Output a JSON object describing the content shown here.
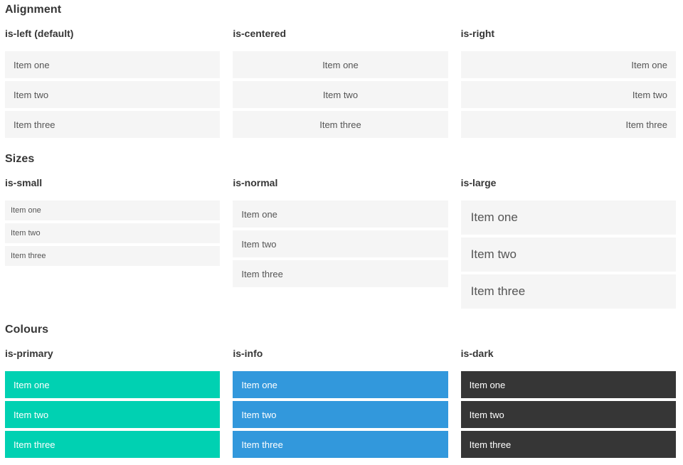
{
  "colors": {
    "item_bg": "#f5f5f5",
    "item_text": "#555555",
    "heading_text": "#363636",
    "primary": "#00d1b2",
    "info": "#3298dc",
    "dark": "#363636",
    "page_bg": "#ffffff",
    "colored_item_text": "#ffffff"
  },
  "sections": [
    {
      "title": "Alignment",
      "columns": [
        {
          "heading": "is-left (default)",
          "items": [
            "Item one",
            "Item two",
            "Item three"
          ]
        },
        {
          "heading": "is-centered",
          "items": [
            "Item one",
            "Item two",
            "Item three"
          ]
        },
        {
          "heading": "is-right",
          "items": [
            "Item one",
            "Item two",
            "Item three"
          ]
        }
      ]
    },
    {
      "title": "Sizes",
      "columns": [
        {
          "heading": "is-small",
          "items": [
            "Item one",
            "Item two",
            "Item three"
          ]
        },
        {
          "heading": "is-normal",
          "items": [
            "Item one",
            "Item two",
            "Item three"
          ]
        },
        {
          "heading": "is-large",
          "items": [
            "Item one",
            "Item two",
            "Item three"
          ]
        }
      ]
    },
    {
      "title": "Colours",
      "columns": [
        {
          "heading": "is-primary",
          "items": [
            "Item one",
            "Item two",
            "Item three"
          ]
        },
        {
          "heading": "is-info",
          "items": [
            "Item one",
            "Item two",
            "Item three"
          ]
        },
        {
          "heading": "is-dark",
          "items": [
            "Item one",
            "Item two",
            "Item three"
          ]
        }
      ]
    }
  ]
}
